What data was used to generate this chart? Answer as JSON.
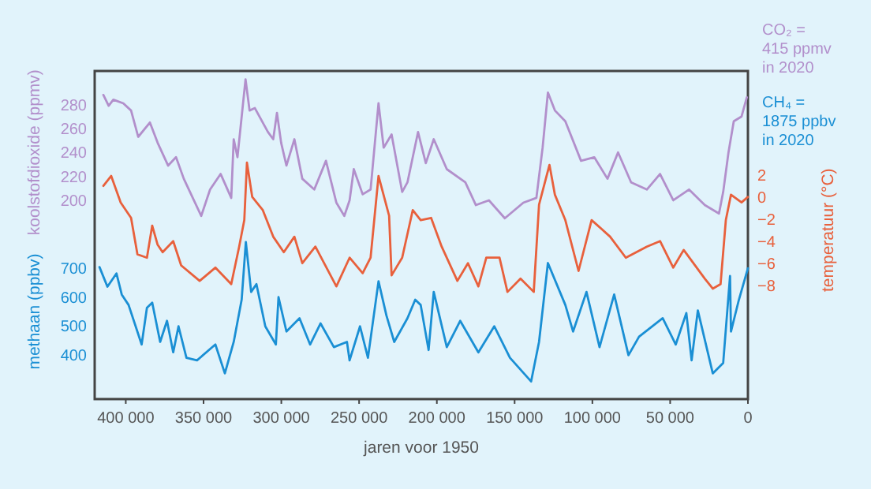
{
  "chart_data": {
    "type": "line",
    "xlabel": "jaren voor 1950",
    "ylabel": "koolstofdioxide (ppmv)",
    "y2label": "temperatuur (°C)",
    "y3label": "methaan (ppbv)",
    "xlim": [
      420000,
      0
    ],
    "xticks": [
      {
        "value": 400000,
        "label": "400 000"
      },
      {
        "value": 350000,
        "label": "350 000"
      },
      {
        "value": 300000,
        "label": "300 000"
      },
      {
        "value": 250000,
        "label": "250 000"
      },
      {
        "value": 200000,
        "label": "200 000"
      },
      {
        "value": 150000,
        "label": "150 000"
      },
      {
        "value": 100000,
        "label": "100 000"
      },
      {
        "value": 50000,
        "label": "50 000"
      },
      0
    ],
    "ylim": [
      34,
      308
    ],
    "yticks": [
      200,
      220,
      240,
      260,
      280
    ],
    "y2lim": [
      -18.3,
      11.4
    ],
    "y2ticks": [
      {
        "value": -8,
        "label": "−8"
      },
      {
        "value": -6,
        "label": "−6"
      },
      {
        "value": -4,
        "label": "−4"
      },
      {
        "value": -2,
        "label": "−2"
      },
      0,
      2
    ],
    "y3lim": [
      247,
      1383
    ],
    "y3ticks": [
      400,
      500,
      600,
      700
    ],
    "annotations": [
      "CO₂ = 415 ppmv in 2020",
      "CH₄ = 1875 ppbv in 2020"
    ],
    "series": [
      {
        "color": "#b28fcb",
        "axis": "y",
        "x": [
          414400,
          411000,
          408000,
          401600,
          396600,
          392000,
          384500,
          379500,
          372800,
          367700,
          362700,
          351500,
          345800,
          339000,
          332200,
          330600,
          328200,
          323000,
          320400,
          317000,
          308600,
          305200,
          302800,
          300100,
          296700,
          291600,
          286500,
          278800,
          271300,
          264600,
          259500,
          256100,
          253400,
          247700,
          242600,
          237500,
          234200,
          229100,
          222300,
          218900,
          212100,
          207100,
          202000,
          193600,
          181700,
          174900,
          166500,
          156300,
          144400,
          136000,
          132000,
          128600,
          124100,
          117400,
          107300,
          98800,
          90300,
          83500,
          75100,
          65000,
          56500,
          48000,
          37900,
          27700,
          18600,
          15900,
          12500,
          9100,
          4100,
          700
        ],
        "values": [
          288,
          279,
          284,
          281,
          275,
          253,
          265,
          248,
          229,
          236,
          218,
          187,
          209,
          222,
          202,
          251,
          236,
          301,
          275,
          277,
          257,
          251,
          273,
          248,
          229,
          251,
          218,
          209,
          233,
          198,
          187,
          200,
          226,
          205,
          209,
          281,
          244,
          255,
          207,
          215,
          257,
          231,
          251,
          226,
          215,
          196,
          200,
          185,
          198,
          202,
          244,
          290,
          275,
          266,
          233,
          236,
          218,
          240,
          215,
          209,
          222,
          200,
          209,
          196,
          189,
          207,
          240,
          266,
          270,
          286
        ]
      },
      {
        "color": "#e8603c",
        "axis": "y2",
        "x": [
          414400,
          409400,
          403300,
          396600,
          392500,
          386400,
          383000,
          379600,
          376300,
          369500,
          364400,
          352500,
          342400,
          332200,
          327100,
          323800,
          322100,
          318700,
          311900,
          305200,
          298400,
          291600,
          286500,
          278100,
          264600,
          256100,
          247700,
          242600,
          237500,
          230700,
          229100,
          222300,
          215500,
          210400,
          203700,
          196900,
          186800,
          180000,
          173300,
          168200,
          159700,
          154600,
          146200,
          137700,
          134300,
          127600,
          124100,
          117400,
          108900,
          100500,
          88600,
          78500,
          65000,
          56500,
          48000,
          41300,
          27700,
          22600,
          17600,
          14200,
          10900,
          4100,
          0
        ],
        "values": [
          1.0,
          1.9,
          -0.5,
          -1.9,
          -5.2,
          -5.5,
          -2.6,
          -4.3,
          -5.0,
          -4.0,
          -6.2,
          -7.6,
          -6.4,
          -7.9,
          -4.5,
          -2.1,
          3.1,
          0,
          -1.2,
          -3.6,
          -5.0,
          -3.6,
          -6.0,
          -4.5,
          -8.1,
          -5.5,
          -6.9,
          -5.5,
          1.9,
          -1.7,
          -7.1,
          -5.5,
          -1.2,
          -2.1,
          -1.9,
          -4.5,
          -7.6,
          -6.0,
          -8.1,
          -5.5,
          -5.5,
          -8.6,
          -7.4,
          -8.6,
          -0.7,
          2.9,
          0.2,
          -2.1,
          -6.7,
          -2.1,
          -3.6,
          -5.5,
          -4.5,
          -4.0,
          -6.4,
          -4.8,
          -7.4,
          -8.3,
          -7.9,
          -2.1,
          0.2,
          -0.5,
          0
        ]
      },
      {
        "color": "#1a8fd4",
        "axis": "y3",
        "x": [
          416900,
          411800,
          406000,
          402600,
          398200,
          389800,
          386400,
          383000,
          377900,
          373500,
          369500,
          366100,
          361000,
          354200,
          342400,
          336300,
          330600,
          325500,
          322800,
          319400,
          316000,
          310300,
          303500,
          301800,
          296700,
          288300,
          281500,
          274800,
          266200,
          257800,
          256100,
          249400,
          244300,
          237500,
          232400,
          227400,
          218900,
          213900,
          210400,
          205300,
          202000,
          193600,
          185000,
          173300,
          163100,
          153000,
          139400,
          134300,
          128600,
          117400,
          112400,
          103800,
          95400,
          86000,
          76800,
          70000,
          54800,
          46400,
          39600,
          36200,
          32200,
          22600,
          15900,
          11500,
          10900,
          5800,
          0
        ],
        "values": [
          704,
          636,
          682,
          609,
          573,
          436,
          563,
          581,
          445,
          518,
          409,
          499,
          390,
          381,
          436,
          336,
          445,
          591,
          791,
          618,
          645,
          499,
          436,
          600,
          481,
          527,
          436,
          509,
          427,
          445,
          381,
          499,
          390,
          655,
          536,
          445,
          527,
          591,
          573,
          417,
          618,
          427,
          518,
          409,
          499,
          390,
          308,
          445,
          718,
          573,
          481,
          618,
          427,
          609,
          399,
          463,
          527,
          436,
          545,
          381,
          554,
          336,
          372,
          673,
          481,
          591,
          700
        ]
      }
    ]
  }
}
